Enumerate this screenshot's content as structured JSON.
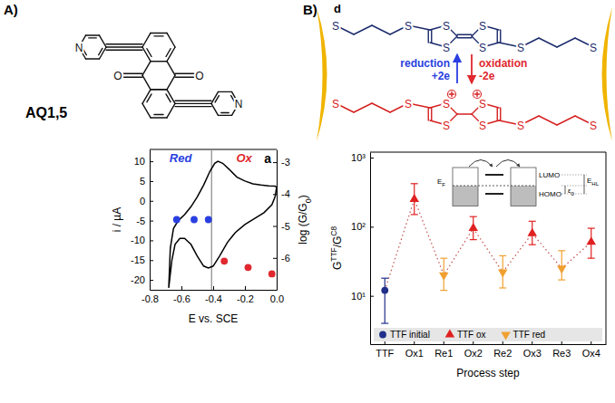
{
  "chart_data": [
    {
      "type": "line",
      "annotations": {
        "panel": "A)",
        "letter": "a",
        "red": "Red",
        "ox": "Ox"
      },
      "structure": {
        "label": "AQ1,5",
        "nitrogen": "N",
        "oxygen": "O"
      },
      "xlabel": "E vs. SCE",
      "ylabel": "i / µA",
      "y2label": "log (G/G0)",
      "xlim": [
        -0.8,
        0.0
      ],
      "xticks": [
        -0.8,
        -0.6,
        -0.4,
        -0.2,
        {
          "value": 0,
          "label": "0.0"
        }
      ],
      "ylim": [
        -22.5,
        13
      ],
      "yticks": [
        -20,
        -15,
        -10,
        -5,
        0,
        5,
        10
      ],
      "y2lim": [
        -7.0,
        -2.6
      ],
      "y2ticks": [
        -3,
        -4,
        -5,
        -6
      ],
      "reference_x": -0.41,
      "series": [
        {
          "type": "line",
          "color": "#000000",
          "line_style": "solid",
          "x": [
            -0.68,
            -0.67,
            -0.65,
            -0.62,
            -0.58,
            -0.54,
            -0.5,
            -0.46,
            -0.42,
            -0.39,
            -0.37,
            -0.34,
            -0.3,
            -0.25,
            -0.2,
            -0.15,
            -0.1,
            -0.05,
            -0.01,
            0.0,
            -0.01,
            -0.03,
            -0.08,
            -0.14,
            -0.2,
            -0.26,
            -0.31,
            -0.36,
            -0.4,
            -0.43,
            -0.46,
            -0.5,
            -0.54,
            -0.58,
            -0.61,
            -0.64,
            -0.66,
            -0.68
          ],
          "values": [
            -22,
            -12,
            -7,
            -5,
            -3.5,
            -1.5,
            1,
            4,
            7.5,
            9.5,
            10,
            9.5,
            8,
            6,
            5,
            4.3,
            4,
            3.8,
            3.7,
            3.5,
            1,
            -1,
            -3,
            -4.5,
            -6,
            -8,
            -10.5,
            -14,
            -16.5,
            -17,
            -16.5,
            -14,
            -11,
            -9.5,
            -9.5,
            -11,
            -15,
            -22
          ]
        },
        {
          "type": "scatter",
          "axis": "y2",
          "color": "#2a3fe0",
          "marker": "circle",
          "x": [
            -0.63,
            -0.52,
            -0.43
          ],
          "values": [
            -4.8,
            -4.8,
            -4.8
          ]
        },
        {
          "type": "scatter",
          "axis": "y2",
          "color": "#e0282e",
          "marker": "circle",
          "x": [
            -0.33,
            -0.18,
            -0.03
          ],
          "values": [
            -6.1,
            -6.3,
            -6.5
          ]
        }
      ]
    },
    {
      "type": "scatter",
      "annotations": {
        "panel": "B)",
        "letter": "d",
        "atom": "S",
        "reduction": "reduction",
        "reduction_charge": "+2e",
        "oxidation": "oxidation",
        "oxidation_charge": "-2e"
      },
      "inset": {
        "fermi": "EF",
        "lumo": "LUMO",
        "homo": "HOMO",
        "gap": "EHL",
        "offset": "ε0"
      },
      "xlabel": "Process step",
      "ylabel": "GTTF/GC8",
      "categories": [
        "TTF",
        "Ox1",
        "Re1",
        "Ox2",
        "Re2",
        "Ox3",
        "Re3",
        "Ox4"
      ],
      "log": "y",
      "ylim": [
        2,
        1200
      ],
      "yticks": [
        {
          "value": 10,
          "label": "10¹"
        },
        {
          "value": 100,
          "label": "10²"
        },
        {
          "value": 1000,
          "label": "10³"
        }
      ],
      "legend": "bottom",
      "line_style": "dotted",
      "series": [
        {
          "name": "TTF initial",
          "color": "#1f2f8a",
          "marker": "circle",
          "values": [
            12,
            null,
            null,
            null,
            null,
            null,
            null,
            null
          ],
          "error_minus": [
            8,
            null,
            null,
            null,
            null,
            null,
            null,
            null
          ],
          "error_plus": [
            6,
            null,
            null,
            null,
            null,
            null,
            null,
            null
          ]
        },
        {
          "name": "TTF ox",
          "color": "#e02020",
          "marker": "triangle-up",
          "values": [
            null,
            250,
            null,
            95,
            null,
            80,
            null,
            60
          ],
          "error_minus": [
            null,
            100,
            null,
            30,
            null,
            25,
            null,
            25
          ],
          "error_plus": [
            null,
            170,
            null,
            45,
            null,
            40,
            null,
            35
          ]
        },
        {
          "name": "TTF red",
          "color": "#f0a030",
          "marker": "triangle-down",
          "values": [
            null,
            null,
            20,
            null,
            22,
            null,
            25,
            null
          ],
          "error_minus": [
            null,
            null,
            8,
            null,
            9,
            null,
            8,
            null
          ],
          "error_plus": [
            null,
            null,
            15,
            null,
            16,
            null,
            20,
            null
          ]
        }
      ]
    }
  ]
}
